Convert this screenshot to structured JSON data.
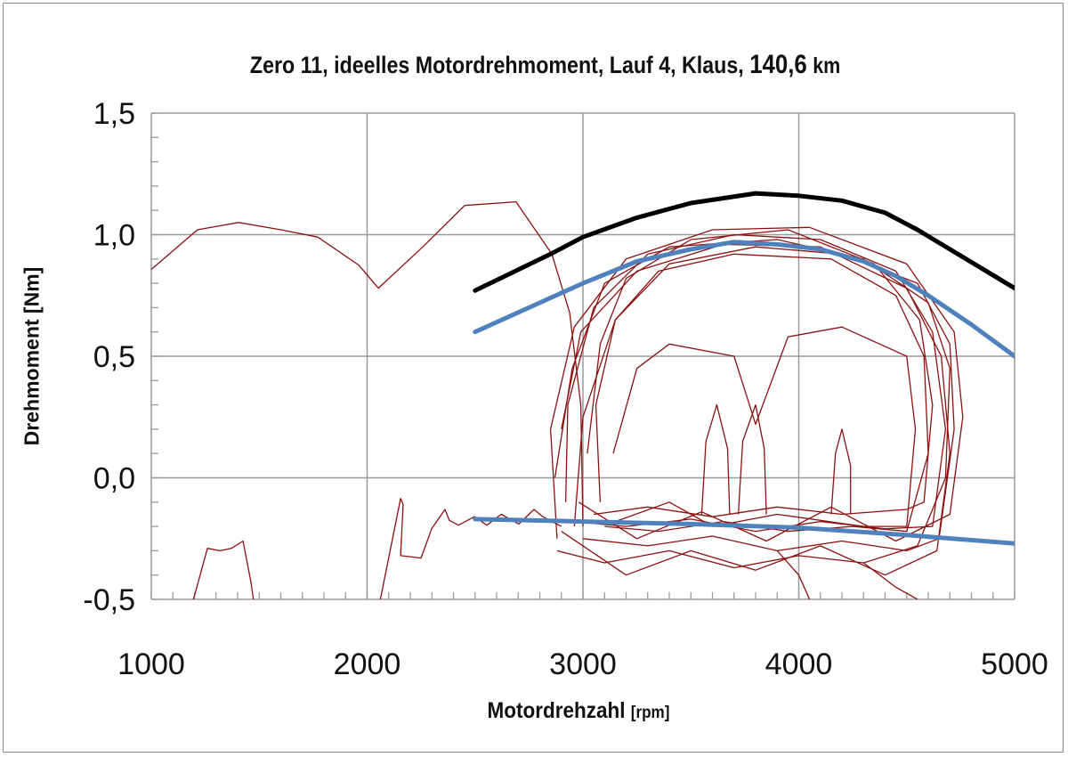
{
  "chart_data": {
    "type": "line",
    "title": {
      "main": "Zero 11, ideelles Motordrehmoment, Lauf 4, Klaus,",
      "bold_value": "140,6",
      "unit": "km"
    },
    "xlabel": "Motordrehzahl",
    "xlabel_unit": "[rpm]",
    "ylabel": "Drehmoment [Nm]",
    "xlim": [
      1000,
      5000
    ],
    "ylim": [
      -0.5,
      1.5
    ],
    "x_ticks": [
      {
        "v": 1000,
        "label": "1000"
      },
      {
        "v": 2000,
        "label": "2000"
      },
      {
        "v": 3000,
        "label": "3000"
      },
      {
        "v": 4000,
        "label": "4000"
      },
      {
        "v": 5000,
        "label": "5000"
      }
    ],
    "y_ticks": [
      {
        "v": 1.5,
        "label": "1,5"
      },
      {
        "v": 1.0,
        "label": "1,0"
      },
      {
        "v": 0.5,
        "label": "0,5"
      },
      {
        "v": 0.0,
        "label": "0,0"
      },
      {
        "v": -0.5,
        "label": "-0,5"
      }
    ],
    "x_minor_step": 100,
    "y_minor_step": 0.1,
    "grid": true,
    "legend": "none",
    "series": [
      {
        "color": "#000000",
        "width": 5,
        "points": [
          [
            2500,
            0.77
          ],
          [
            2850,
            0.92
          ],
          [
            3000,
            0.99
          ],
          [
            3250,
            1.07
          ],
          [
            3500,
            1.13
          ],
          [
            3800,
            1.17
          ],
          [
            4000,
            1.16
          ],
          [
            4200,
            1.14
          ],
          [
            4400,
            1.09
          ],
          [
            4550,
            1.02
          ],
          [
            4700,
            0.94
          ],
          [
            4850,
            0.86
          ],
          [
            5000,
            0.78
          ]
        ]
      },
      {
        "color": "#4f81bd",
        "width": 5,
        "points": [
          [
            2500,
            0.6
          ],
          [
            2750,
            0.7
          ],
          [
            3000,
            0.8
          ],
          [
            3250,
            0.89
          ],
          [
            3500,
            0.94
          ],
          [
            3700,
            0.97
          ],
          [
            3900,
            0.96
          ],
          [
            4100,
            0.94
          ],
          [
            4300,
            0.89
          ],
          [
            4450,
            0.83
          ],
          [
            4600,
            0.75
          ],
          [
            4800,
            0.63
          ],
          [
            5000,
            0.5
          ]
        ]
      },
      {
        "color": "#4f81bd",
        "width": 5,
        "points": [
          [
            2500,
            -0.17
          ],
          [
            3000,
            -0.18
          ],
          [
            3500,
            -0.19
          ],
          [
            4000,
            -0.205
          ],
          [
            4500,
            -0.235
          ],
          [
            5000,
            -0.27
          ]
        ]
      }
    ],
    "trace": {
      "color": "#8b1111",
      "segments": [
        [
          [
            1000,
            0.857
          ],
          [
            1214,
            1.02
          ],
          [
            1404,
            1.05
          ],
          [
            1600,
            1.02
          ],
          [
            1771,
            0.99
          ],
          [
            1961,
            0.875
          ],
          [
            2052,
            0.78
          ],
          [
            2258,
            0.95
          ],
          [
            2452,
            1.12
          ],
          [
            2690,
            1.135
          ],
          [
            2856,
            0.92
          ],
          [
            2938,
            0.68
          ],
          [
            2990,
            0.3
          ],
          [
            3000,
            -0.2
          ]
        ],
        [
          [
            1194,
            -0.505
          ],
          [
            1260,
            -0.29
          ],
          [
            1318,
            -0.3
          ],
          [
            1371,
            -0.29
          ],
          [
            1425,
            -0.26
          ],
          [
            1462,
            -0.43
          ],
          [
            1474,
            -0.505
          ]
        ],
        [
          [
            2060,
            -0.505
          ],
          [
            2155,
            -0.085
          ],
          [
            2167,
            -0.11
          ],
          [
            2155,
            -0.32
          ],
          [
            2250,
            -0.33
          ],
          [
            2299,
            -0.21
          ],
          [
            2361,
            -0.13
          ],
          [
            2381,
            -0.175
          ],
          [
            2423,
            -0.195
          ],
          [
            2497,
            -0.16
          ],
          [
            2555,
            -0.195
          ],
          [
            2621,
            -0.15
          ],
          [
            2703,
            -0.19
          ],
          [
            2773,
            -0.13
          ],
          [
            2814,
            -0.16
          ],
          [
            2900,
            -0.2
          ]
        ],
        [
          [
            2950,
            -0.18
          ],
          [
            3200,
            -0.2
          ],
          [
            3500,
            -0.17
          ],
          [
            3800,
            -0.22
          ],
          [
            4100,
            -0.18
          ],
          [
            4400,
            -0.21
          ],
          [
            4620,
            -0.2
          ],
          [
            4680,
            0.2
          ],
          [
            4620,
            0.6
          ],
          [
            4450,
            0.85
          ],
          [
            4100,
            0.98
          ],
          [
            3700,
            1.0
          ],
          [
            3300,
            0.92
          ],
          [
            3050,
            0.7
          ],
          [
            2930,
            0.3
          ],
          [
            2920,
            -0.1
          ]
        ],
        [
          [
            3000,
            -0.25
          ],
          [
            3300,
            -0.28
          ],
          [
            3600,
            -0.24
          ],
          [
            3900,
            -0.3
          ],
          [
            4200,
            -0.26
          ],
          [
            4500,
            -0.3
          ],
          [
            4650,
            -0.25
          ],
          [
            4720,
            0.2
          ],
          [
            4700,
            0.55
          ],
          [
            4550,
            0.8
          ],
          [
            4200,
            0.92
          ],
          [
            3800,
            0.95
          ],
          [
            3400,
            0.88
          ],
          [
            3150,
            0.65
          ],
          [
            3000,
            0.25
          ],
          [
            2960,
            -0.2
          ]
        ],
        [
          [
            3050,
            -0.15
          ],
          [
            3300,
            -0.12
          ],
          [
            3600,
            -0.16
          ],
          [
            3900,
            -0.12
          ],
          [
            4200,
            -0.15
          ],
          [
            4500,
            -0.13
          ],
          [
            4580,
            -0.1
          ],
          [
            4620,
            0.3
          ],
          [
            4560,
            0.65
          ],
          [
            4350,
            0.88
          ],
          [
            3950,
            1.02
          ],
          [
            3500,
            0.98
          ],
          [
            3200,
            0.82
          ],
          [
            3080,
            0.55
          ],
          [
            3020,
            0.1
          ]
        ],
        [
          [
            2880,
            -0.3
          ],
          [
            3100,
            -0.35
          ],
          [
            3400,
            -0.3
          ],
          [
            3700,
            -0.37
          ],
          [
            4000,
            -0.32
          ],
          [
            4300,
            -0.35
          ],
          [
            4550,
            -0.28
          ],
          [
            4680,
            0.0
          ],
          [
            4700,
            0.45
          ],
          [
            4600,
            0.72
          ],
          [
            4300,
            0.9
          ],
          [
            3900,
            0.98
          ],
          [
            3400,
            0.95
          ],
          [
            3100,
            0.8
          ],
          [
            2950,
            0.45
          ],
          [
            2870,
            0.0
          ]
        ],
        [
          [
            3150,
            -0.18
          ],
          [
            3400,
            -0.1
          ],
          [
            3600,
            -0.2
          ],
          [
            3900,
            -0.15
          ],
          [
            4300,
            -0.2
          ],
          [
            4500,
            -0.2
          ],
          [
            4540,
            0.2
          ],
          [
            4500,
            0.5
          ],
          [
            4200,
            0.62
          ],
          [
            3950,
            0.58
          ],
          [
            3800,
            0.22
          ],
          [
            3700,
            0.5
          ],
          [
            3400,
            0.55
          ],
          [
            3250,
            0.45
          ],
          [
            3140,
            0.1
          ]
        ],
        [
          [
            2900,
            -0.22
          ],
          [
            3200,
            -0.4
          ],
          [
            3500,
            -0.3
          ],
          [
            3800,
            -0.38
          ],
          [
            4100,
            -0.28
          ],
          [
            4400,
            -0.4
          ],
          [
            4640,
            -0.3
          ],
          [
            4700,
            0.1
          ],
          [
            4660,
            0.5
          ],
          [
            4500,
            0.78
          ],
          [
            4100,
            0.95
          ],
          [
            3650,
            0.96
          ],
          [
            3250,
            0.85
          ],
          [
            2990,
            0.6
          ],
          [
            2900,
            0.2
          ]
        ],
        [
          [
            3100,
            -0.2
          ],
          [
            3350,
            -0.22
          ],
          [
            3650,
            -0.18
          ],
          [
            3950,
            -0.22
          ],
          [
            4250,
            -0.2
          ],
          [
            4500,
            -0.22
          ],
          [
            4600,
            0.1
          ],
          [
            4580,
            0.5
          ],
          [
            4450,
            0.75
          ],
          [
            4150,
            0.9
          ],
          [
            3700,
            0.92
          ],
          [
            3350,
            0.85
          ],
          [
            3150,
            0.65
          ],
          [
            3060,
            0.3
          ],
          [
            3080,
            -0.1
          ]
        ],
        [
          [
            2980,
            -0.1
          ],
          [
            3250,
            -0.25
          ],
          [
            3550,
            -0.14
          ],
          [
            3850,
            -0.26
          ],
          [
            4150,
            -0.12
          ],
          [
            4450,
            -0.26
          ],
          [
            4700,
            -0.15
          ],
          [
            4760,
            0.25
          ],
          [
            4720,
            0.6
          ],
          [
            4500,
            0.88
          ],
          [
            4050,
            1.03
          ],
          [
            3600,
            1.02
          ],
          [
            3200,
            0.9
          ],
          [
            2960,
            0.62
          ],
          [
            2850,
            0.2
          ],
          [
            2880,
            -0.25
          ]
        ],
        [
          [
            3550,
            -0.15
          ],
          [
            3570,
            0.15
          ],
          [
            3620,
            0.3
          ],
          [
            3670,
            0.12
          ],
          [
            3680,
            -0.15
          ]
        ],
        [
          [
            3720,
            -0.15
          ],
          [
            3740,
            0.15
          ],
          [
            3800,
            0.3
          ],
          [
            3840,
            0.12
          ],
          [
            3850,
            -0.15
          ]
        ],
        [
          [
            4150,
            -0.15
          ],
          [
            4170,
            0.1
          ],
          [
            4200,
            0.2
          ],
          [
            4240,
            0.05
          ],
          [
            4240,
            -0.15
          ]
        ],
        [
          [
            3900,
            -0.3
          ],
          [
            4000,
            -0.4
          ],
          [
            4050,
            -0.5
          ]
        ],
        [
          [
            4300,
            -0.35
          ],
          [
            4450,
            -0.45
          ],
          [
            4550,
            -0.5
          ]
        ]
      ]
    }
  }
}
